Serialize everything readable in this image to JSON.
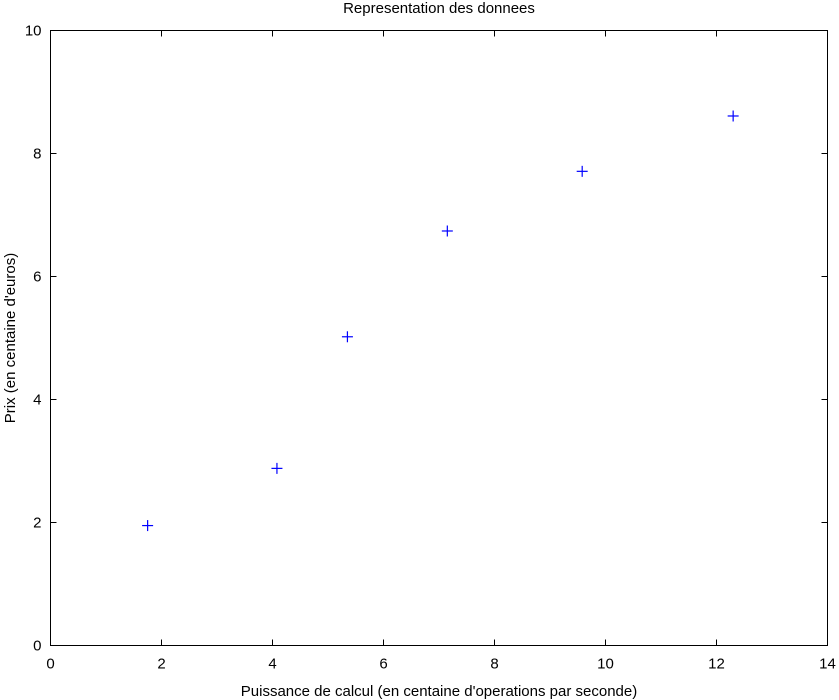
{
  "chart_data": {
    "type": "scatter",
    "title": "Representation des donnees",
    "xlabel": "Puissance de calcul (en centaine d'operations par seconde)",
    "ylabel": "Prix (en centaine d'euros)",
    "xlim": [
      0,
      14
    ],
    "ylim": [
      0,
      10
    ],
    "xticks": [
      0,
      2,
      4,
      6,
      8,
      10,
      12,
      14
    ],
    "yticks": [
      0,
      2,
      4,
      6,
      8,
      10
    ],
    "grid": false,
    "marker": "+",
    "marker_color": "#0000ff",
    "series": [
      {
        "points": [
          {
            "x": 1.75,
            "y": 1.95
          },
          {
            "x": 4.08,
            "y": 2.88
          },
          {
            "x": 5.35,
            "y": 5.02
          },
          {
            "x": 7.15,
            "y": 6.74
          },
          {
            "x": 9.58,
            "y": 7.71
          },
          {
            "x": 12.3,
            "y": 8.61
          }
        ]
      }
    ]
  }
}
